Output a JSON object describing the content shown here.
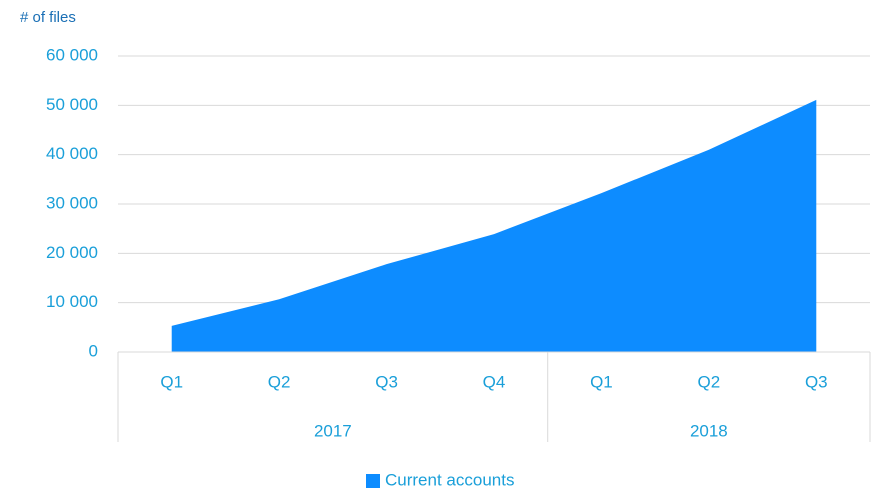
{
  "chart_data": {
    "type": "area",
    "y_axis_label": "# of files",
    "categories": [
      "Q1",
      "Q2",
      "Q3",
      "Q4",
      "Q1",
      "Q2",
      "Q3"
    ],
    "groups": [
      {
        "label": "2017",
        "span": 4
      },
      {
        "label": "2018",
        "span": 3
      }
    ],
    "series": [
      {
        "name": "Current accounts",
        "color": "#0d8cff",
        "values": [
          5300,
          10700,
          17800,
          23900,
          32200,
          41000,
          51100
        ]
      }
    ],
    "ylim": [
      0,
      60000
    ],
    "yticks": [
      0,
      {
        "value": 10000,
        "label": "10 000"
      },
      {
        "value": 20000,
        "label": "20 000"
      },
      {
        "value": 30000,
        "label": "30 000"
      },
      {
        "value": 40000,
        "label": "40 000"
      },
      {
        "value": 50000,
        "label": "50 000"
      },
      {
        "value": 60000,
        "label": "60 000"
      }
    ],
    "grid": true,
    "legend": "bottom"
  }
}
